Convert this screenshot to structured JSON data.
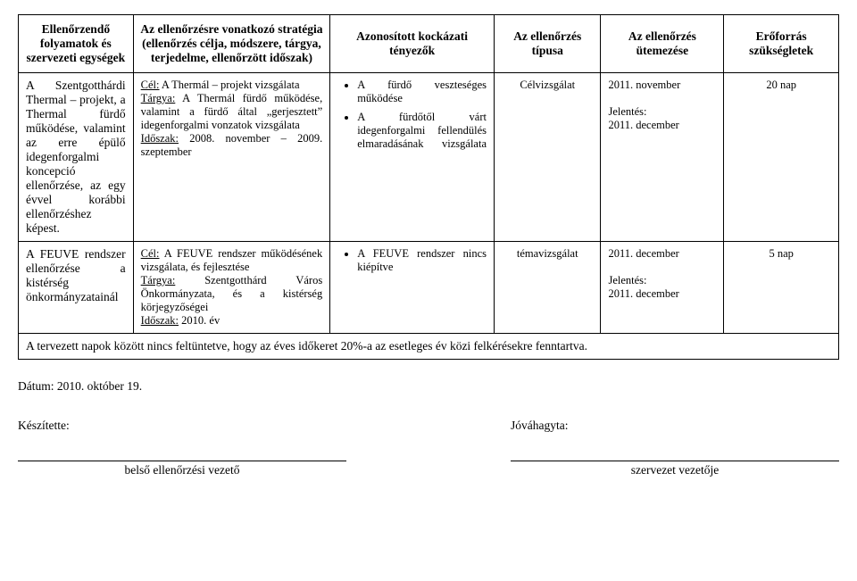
{
  "headers": {
    "c1": "Ellenőrzendő folyamatok és szervezeti egységek",
    "c2": "Az ellenőrzésre vonatkozó stratégia (ellenőrzés célja, módszere, tárgya, terjedelme, ellenőrzött időszak)",
    "c3": "Azonosított kockázati tényezők",
    "c4": "Az ellenőrzés típusa",
    "c5": "Az ellenőrzés ütemezése",
    "c6": "Erőforrás szükségletek"
  },
  "rows": [
    {
      "process": "A Szentgotthárdi Thermal – projekt, a Thermal fürdő működése, valamint az erre épülő idegenforgalmi koncepció ellenőrzése, az egy évvel korábbi ellenőrzéshez képest.",
      "strategy": {
        "cel_label": "Cél:",
        "cel_text": " A Thermál – projekt vizsgálata",
        "targya_label": "Tárgya:",
        "targya_text": " A Thermál fürdő működése, valamint a fürdő által „gerjesztett” idegenforgalmi vonzatok vizsgálata",
        "idoszak_label": "Időszak:",
        "idoszak_text": " 2008. november – 2009. szeptember"
      },
      "risks": [
        "A fürdő veszteséges működése",
        "A fürdőtől várt idegenforgalmi fellendülés elmaradásának vizsgálata"
      ],
      "type": "Célvizsgálat",
      "schedule_line1": "2011. november",
      "schedule_label": "Jelentés:",
      "schedule_line2": "2011. december",
      "resource": "20 nap"
    },
    {
      "process": "A FEUVE rendszer ellenőrzése a kistérség önkormányzatainál",
      "strategy": {
        "cel_label": "Cél:",
        "cel_text": " A FEUVE rendszer működésének vizsgálata, és fejlesztése",
        "targya_label": "Tárgya:",
        "targya_text": " Szentgotthárd Város Önkormányzata, és a kistérség körjegyzőségei",
        "idoszak_label": "Időszak:",
        "idoszak_text": " 2010. év"
      },
      "risks": [
        "A FEUVE rendszer nincs kiépítve"
      ],
      "type": "témavizsgálat",
      "schedule_line1": "2011. december",
      "schedule_label": "Jelentés:",
      "schedule_line2": "2011. december",
      "resource": "5 nap"
    }
  ],
  "footnote": "A tervezett napok között nincs feltüntetve, hogy az éves időkeret 20%-a az esetleges év közi felkérésekre fenntartva.",
  "date": "Dátum: 2010. október 19.",
  "prepared_label": "Készítette:",
  "approved_label": "Jóváhagyta:",
  "prepared_role": "belső ellenőrzési vezető",
  "approved_role": "szervezet vezetője"
}
